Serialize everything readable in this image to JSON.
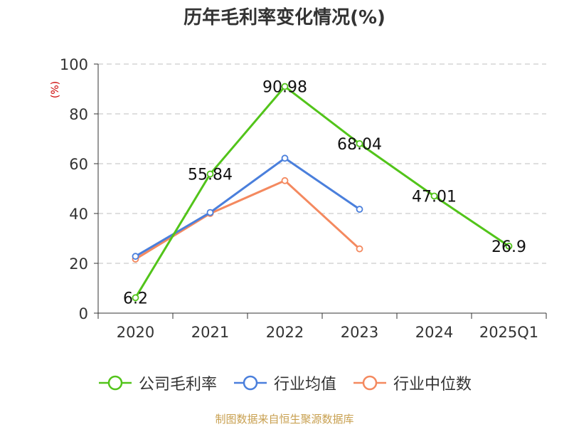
{
  "chart_data": {
    "type": "line",
    "title": "历年毛利率变化情况(%)",
    "ylabel": "(%)",
    "categories": [
      "2020",
      "2021",
      "2022",
      "2023",
      "2024",
      "2025Q1"
    ],
    "yticks": [
      0,
      20,
      40,
      60,
      80,
      100
    ],
    "ylim": [
      0,
      100
    ],
    "grid": "horizontal dashed",
    "legend_position": "bottom",
    "series": [
      {
        "name": "公司毛利率",
        "color": "#52c41a",
        "values": [
          6.2,
          55.84,
          90.98,
          68.04,
          47.01,
          26.9
        ],
        "labels": [
          "6.2",
          "55.84",
          "90.98",
          "68.04",
          "47.01",
          "26.9"
        ]
      },
      {
        "name": "行业均值",
        "color": "#4a7fdc",
        "values": [
          22.8,
          40.4,
          62.2,
          41.7,
          null,
          null
        ]
      },
      {
        "name": "行业中位数",
        "color": "#f4895f",
        "values": [
          21.7,
          40.0,
          53.2,
          25.8,
          null,
          null
        ]
      }
    ]
  },
  "source_note": "制图数据来自恒生聚源数据库"
}
